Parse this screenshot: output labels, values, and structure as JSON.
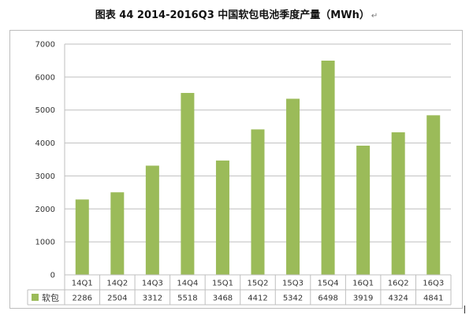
{
  "title": "图表 44 2014-2016Q3 中国软包电池季度产量（MWh）",
  "title_mark": "↵",
  "chart_data": {
    "type": "bar",
    "categories": [
      "14Q1",
      "14Q2",
      "14Q3",
      "14Q4",
      "15Q1",
      "15Q2",
      "15Q3",
      "15Q4",
      "16Q1",
      "16Q2",
      "16Q3"
    ],
    "series": [
      {
        "name": "软包",
        "values": [
          2286,
          2504,
          3312,
          5518,
          3468,
          4412,
          5342,
          6498,
          3919,
          4324,
          4841
        ],
        "color": "#9BBB59"
      }
    ],
    "ylim": [
      0,
      7000
    ],
    "yticks": [
      0,
      1000,
      2000,
      3000,
      4000,
      5000,
      6000,
      7000
    ],
    "grid": true,
    "data_table": true
  }
}
